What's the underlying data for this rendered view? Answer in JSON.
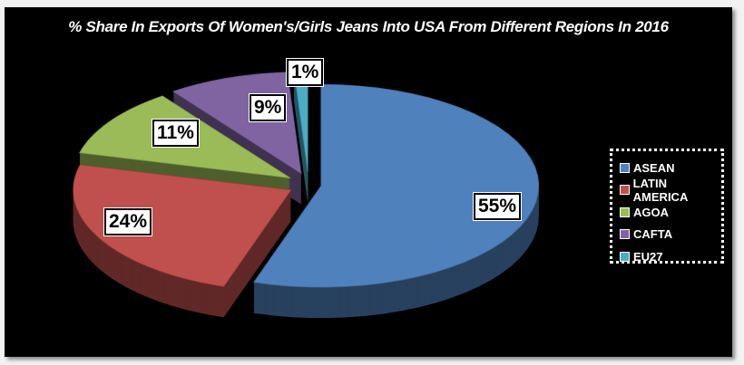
{
  "chart_data": {
    "type": "pie",
    "variant": "3d-exploded",
    "title": "% Share In Exports Of Women's/Girls Jeans Into USA From Different Regions In 2016",
    "categories": [
      "ASEAN",
      "LATIN AMERICA",
      "AGOA",
      "CAFTA",
      "EU27"
    ],
    "values": [
      55,
      24,
      11,
      9,
      1
    ],
    "data_labels": [
      "55%",
      "24%",
      "11%",
      "9%",
      "1%"
    ],
    "colors": [
      "#4f81bd",
      "#c0504d",
      "#9bbb59",
      "#8064a2",
      "#4bacc6"
    ],
    "legend_position": "right",
    "background": "#000000"
  }
}
